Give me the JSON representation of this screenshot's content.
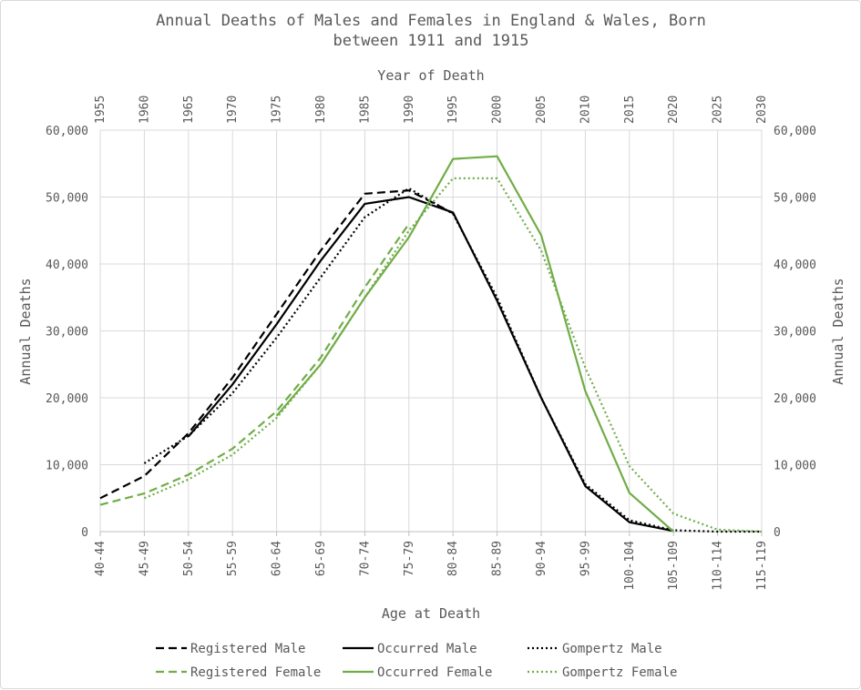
{
  "chart_data": {
    "type": "line",
    "title": "Annual Deaths of Males and Females in England & Wales, Born between 1911 and 1915",
    "title_lines": [
      "Annual Deaths of Males and Females in England & Wales, Born",
      "between 1911 and 1915"
    ],
    "xlabel": "Age at Death",
    "x2label": "Year of Death",
    "ylabel": "Annual Deaths",
    "y2label": "Annual Deaths",
    "ylim": [
      0,
      60000
    ],
    "yticks": [
      "0",
      "10,000",
      "20,000",
      "30,000",
      "40,000",
      "50,000",
      "60,000"
    ],
    "categories": [
      "40-44",
      "45-49",
      "50-54",
      "55-59",
      "60-64",
      "65-69",
      "70-74",
      "75-79",
      "80-84",
      "85-89",
      "90-94",
      "95-99",
      "100-104",
      "105-109",
      "110-114",
      "115-119"
    ],
    "top_categories": [
      "1955",
      "1960",
      "1965",
      "1970",
      "1975",
      "1980",
      "1985",
      "1990",
      "1995",
      "2000",
      "2005",
      "2010",
      "2015",
      "2020",
      "2025",
      "2030"
    ],
    "grid": true,
    "legend_position": "bottom",
    "series": [
      {
        "name": "Registered Male",
        "color": "#000000",
        "dash": "dashed",
        "values": [
          5000,
          8300,
          14700,
          23000,
          32500,
          42000,
          50500,
          51000,
          47600,
          null,
          null,
          null,
          null,
          null,
          null,
          null
        ]
      },
      {
        "name": "Occurred Male",
        "color": "#000000",
        "dash": "solid",
        "values": [
          null,
          null,
          14200,
          22000,
          31000,
          40500,
          49000,
          50000,
          47700,
          34500,
          20000,
          6800,
          1400,
          100,
          null,
          null
        ]
      },
      {
        "name": "Gompertz Male",
        "color": "#000000",
        "dash": "dotted",
        "values": [
          null,
          10200,
          14300,
          20700,
          29000,
          38000,
          47000,
          51300,
          47500,
          35000,
          20000,
          7100,
          1700,
          200,
          0,
          0
        ]
      },
      {
        "name": "Registered Female",
        "color": "#70ad47",
        "dash": "dashed",
        "values": [
          4000,
          5700,
          8500,
          12400,
          18000,
          26000,
          36500,
          46000,
          null,
          null,
          null,
          null,
          null,
          null,
          null,
          null
        ]
      },
      {
        "name": "Occurred Female",
        "color": "#70ad47",
        "dash": "solid",
        "values": [
          null,
          null,
          null,
          null,
          17300,
          25000,
          35000,
          44000,
          55700,
          56100,
          44300,
          21000,
          5800,
          0,
          null,
          null
        ]
      },
      {
        "name": "Gompertz Female",
        "color": "#70ad47",
        "dash": "dotted",
        "values": [
          null,
          5000,
          7800,
          11500,
          17000,
          25000,
          35000,
          45000,
          52800,
          52800,
          42000,
          24500,
          9800,
          2700,
          300,
          0
        ]
      }
    ]
  }
}
